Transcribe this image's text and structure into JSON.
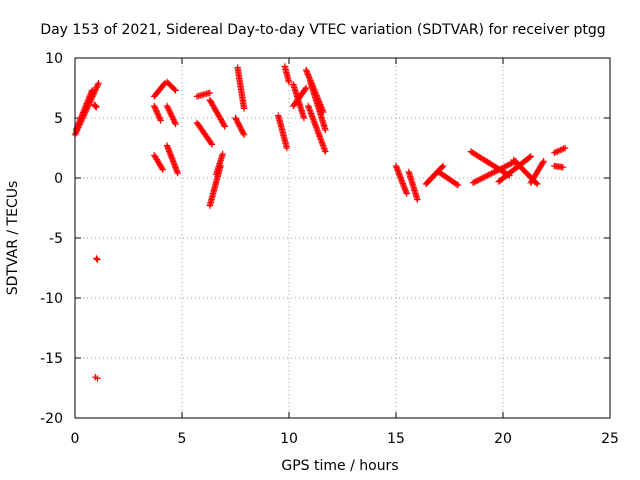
{
  "chart_data": {
    "type": "scatter",
    "title": "Day 153 of 2021, Sidereal Day-to-day VTEC variation (SDTVAR) for receiver ptgg",
    "xlabel": "GPS time / hours",
    "ylabel": "SDTVAR / TECUs",
    "xlim": [
      0,
      25
    ],
    "ylim": [
      -20,
      10
    ],
    "xticks": [
      0,
      5,
      10,
      15,
      20,
      25
    ],
    "yticks": [
      -20,
      -15,
      -10,
      -5,
      0,
      5,
      10
    ],
    "grid": true,
    "marker": "plus",
    "color": "#ff0000",
    "series": [
      {
        "name": "SDTVAR",
        "segments": [
          {
            "x0": 0.0,
            "x1": 1.1,
            "y0": 3.6,
            "y1": 7.9
          },
          {
            "x0": 0.05,
            "x1": 0.8,
            "y0": 4.0,
            "y1": 7.3
          },
          {
            "x0": 0.9,
            "x1": 1.0,
            "y0": 6.1,
            "y1": 5.9
          },
          {
            "x0": 3.7,
            "x1": 4.2,
            "y0": 6.8,
            "y1": 7.9
          },
          {
            "x0": 3.7,
            "x1": 4.0,
            "y0": 6.0,
            "y1": 4.8
          },
          {
            "x0": 3.7,
            "x1": 4.1,
            "y0": 1.9,
            "y1": 0.7
          },
          {
            "x0": 4.3,
            "x1": 4.7,
            "y0": 8.0,
            "y1": 7.3
          },
          {
            "x0": 4.3,
            "x1": 4.7,
            "y0": 6.0,
            "y1": 4.5
          },
          {
            "x0": 4.3,
            "x1": 4.8,
            "y0": 2.7,
            "y1": 0.4
          },
          {
            "x0": 5.7,
            "x1": 6.3,
            "y0": 6.8,
            "y1": 7.1
          },
          {
            "x0": 5.7,
            "x1": 6.4,
            "y0": 4.6,
            "y1": 2.8
          },
          {
            "x0": 6.3,
            "x1": 6.8,
            "y0": -2.3,
            "y1": 1.0
          },
          {
            "x0": 6.6,
            "x1": 6.9,
            "y0": 0.3,
            "y1": 2.0
          },
          {
            "x0": 6.3,
            "x1": 7.0,
            "y0": 6.5,
            "y1": 4.3
          },
          {
            "x0": 7.6,
            "x1": 7.9,
            "y0": 9.2,
            "y1": 5.8
          },
          {
            "x0": 7.5,
            "x1": 7.9,
            "y0": 5.0,
            "y1": 3.6
          },
          {
            "x0": 9.5,
            "x1": 9.9,
            "y0": 5.2,
            "y1": 2.5
          },
          {
            "x0": 9.8,
            "x1": 10.0,
            "y0": 9.3,
            "y1": 8.0
          },
          {
            "x0": 10.2,
            "x1": 10.7,
            "y0": 7.8,
            "y1": 5.0
          },
          {
            "x0": 10.2,
            "x1": 10.8,
            "y0": 6.0,
            "y1": 7.5
          },
          {
            "x0": 10.8,
            "x1": 11.6,
            "y0": 9.0,
            "y1": 5.5
          },
          {
            "x0": 10.9,
            "x1": 11.7,
            "y0": 6.0,
            "y1": 2.2
          },
          {
            "x0": 11.0,
            "x1": 11.7,
            "y0": 8.0,
            "y1": 4.0
          },
          {
            "x0": 15.0,
            "x1": 15.5,
            "y0": 1.0,
            "y1": -1.3
          },
          {
            "x0": 15.6,
            "x1": 16.0,
            "y0": 0.5,
            "y1": -1.8
          },
          {
            "x0": 16.4,
            "x1": 17.2,
            "y0": -0.5,
            "y1": 1.0
          },
          {
            "x0": 17.0,
            "x1": 17.9,
            "y0": 0.5,
            "y1": -0.6
          },
          {
            "x0": 18.5,
            "x1": 20.3,
            "y0": 2.2,
            "y1": 0.2
          },
          {
            "x0": 18.6,
            "x1": 20.6,
            "y0": -0.4,
            "y1": 1.4
          },
          {
            "x0": 19.8,
            "x1": 21.3,
            "y0": -0.3,
            "y1": 1.8
          },
          {
            "x0": 20.5,
            "x1": 21.6,
            "y0": 1.5,
            "y1": -0.5
          },
          {
            "x0": 21.3,
            "x1": 21.9,
            "y0": -0.4,
            "y1": 1.4
          },
          {
            "x0": 22.4,
            "x1": 22.9,
            "y0": 2.1,
            "y1": 2.5
          },
          {
            "x0": 22.4,
            "x1": 22.8,
            "y0": 1.0,
            "y1": 0.9
          }
        ],
        "points": [
          {
            "x": 1.0,
            "y": -6.7
          },
          {
            "x": 1.05,
            "y": -6.8
          },
          {
            "x": 0.95,
            "y": -16.6
          },
          {
            "x": 1.05,
            "y": -16.7
          }
        ]
      }
    ]
  }
}
